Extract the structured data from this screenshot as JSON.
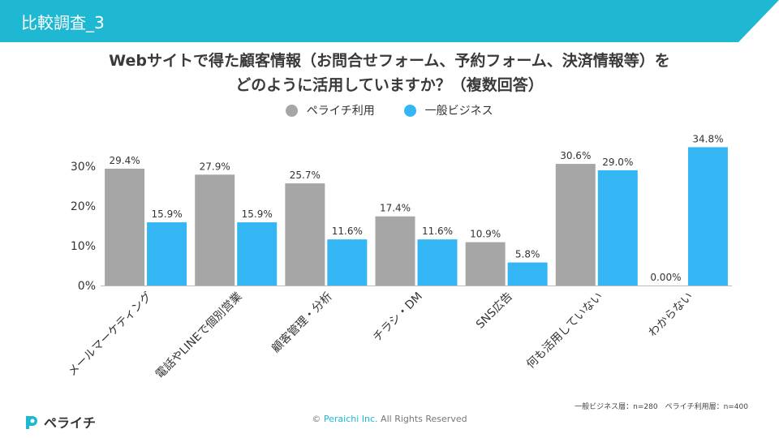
{
  "header": {
    "title": "比較調査_3"
  },
  "chart_data": {
    "type": "bar",
    "title_lines": [
      "Webサイトで得た顧客情報（お問合せフォーム、予約フォーム、決済情報等）を",
      "どのように活用していますか？（複数回答）"
    ],
    "categories": [
      "メールマーケティング",
      "電話やLINEで個別営業",
      "顧客管理・分析",
      "チラシ・DM",
      "SNS広告",
      "何も活用していない",
      "わからない"
    ],
    "series": [
      {
        "name": "ペライチ利用",
        "color": "#a6a6a6",
        "values": [
          29.4,
          27.9,
          25.7,
          17.4,
          10.9,
          30.6,
          0.0
        ],
        "labels": [
          "29.4%",
          "27.9%",
          "25.7%",
          "17.4%",
          "10.9%",
          "30.6%",
          "0.00%"
        ]
      },
      {
        "name": "一般ビジネス",
        "color": "#35b6f4",
        "values": [
          15.9,
          15.9,
          11.6,
          11.6,
          5.8,
          29.0,
          34.8
        ],
        "labels": [
          "15.9%",
          "15.9%",
          "11.6%",
          "11.6%",
          "5.8%",
          "29.0%",
          "34.8%"
        ]
      }
    ],
    "yticks": [
      "0%",
      "10%",
      "20%",
      "30%"
    ],
    "ylim": [
      0,
      40
    ],
    "grid": false,
    "legend_position": "top-center"
  },
  "footer": {
    "note": "一般ビジネス層：n=280　ペライチ利用層：n=400",
    "logo_text": "ペライチ",
    "copyright_prefix": "© ",
    "copyright_brand": "Peraichi Inc.",
    "copyright_suffix": "  All Rights Reserved"
  }
}
